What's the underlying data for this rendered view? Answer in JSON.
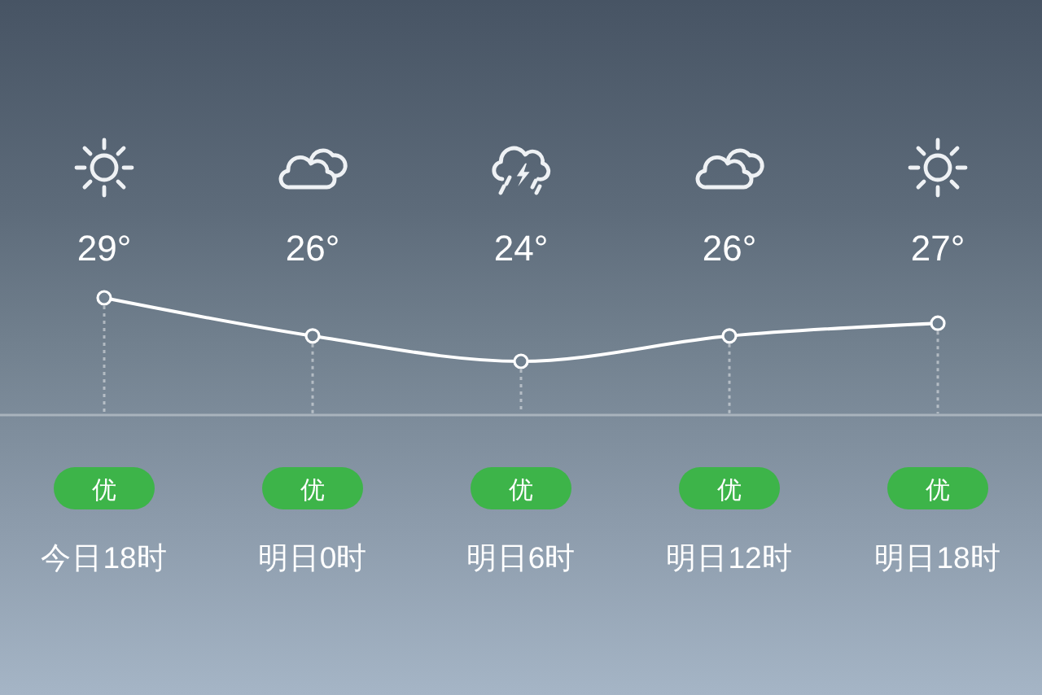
{
  "chart_data": {
    "type": "line",
    "categories": [
      "今日18时",
      "明日0时",
      "明日6时",
      "明日12时",
      "明日18时"
    ],
    "values": [
      29,
      26,
      24,
      26,
      27
    ],
    "value_labels": [
      "29°",
      "26°",
      "24°",
      "26°",
      "27°"
    ],
    "color": "#ffffff",
    "marker": "circle",
    "grid": "x",
    "annotations": [
      "优",
      "优",
      "优",
      "优",
      "优"
    ]
  }
}
